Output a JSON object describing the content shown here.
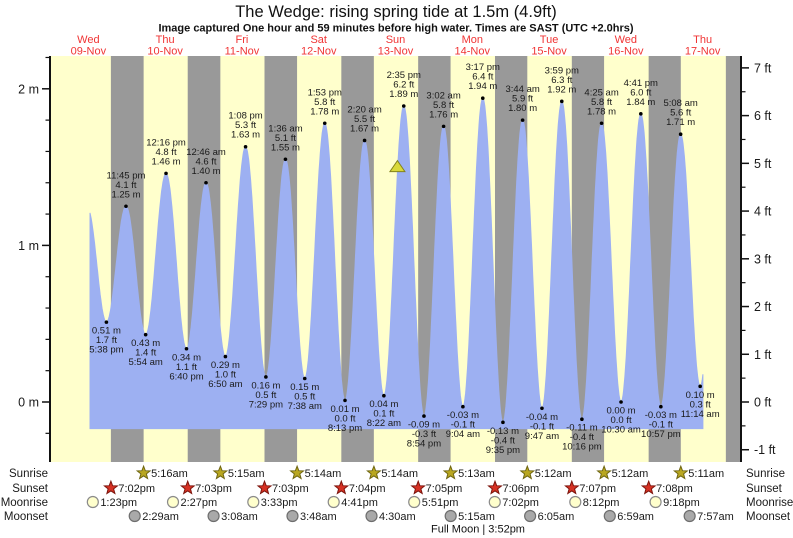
{
  "title": "The Wedge: rising  spring tide at 1.5m (4.9ft)",
  "subtitle": "Image captured One hour and 59 minutes before high water. Times are SAST (UTC +2.0hrs)",
  "colors": {
    "background": "#ffffff",
    "day_band": "#ffffcc",
    "night_band": "#999999",
    "tide_fill": "#9db0f2",
    "axis": "#111111",
    "day_label_red": "#f03434",
    "label_text": "#1a1a1a",
    "dot": "#000000",
    "sunrise_star": "#b9a720",
    "sunrise_star_border": "#6f6612",
    "sunset_star": "#d63123",
    "sunset_star_border": "#7c150d",
    "moonrise_fill": "#ffffcc",
    "moonrise_border": "#8a8a8a",
    "moonset_fill": "#a9a9a9",
    "moonset_border": "#6e6e6e",
    "capture_marker_fill": "#d9d93a",
    "capture_marker_border": "#82821e"
  },
  "chart_data": {
    "type": "area",
    "title": "The Wedge: rising  spring tide at 1.5m (4.9ft)",
    "x_days": [
      {
        "dow": "Wed",
        "date": "09-Nov"
      },
      {
        "dow": "Thu",
        "date": "10-Nov"
      },
      {
        "dow": "Fri",
        "date": "11-Nov"
      },
      {
        "dow": "Sat",
        "date": "12-Nov"
      },
      {
        "dow": "Sun",
        "date": "13-Nov"
      },
      {
        "dow": "Mon",
        "date": "14-Nov"
      },
      {
        "dow": "Tue",
        "date": "15-Nov"
      },
      {
        "dow": "Wed",
        "date": "16-Nov"
      },
      {
        "dow": "Thu",
        "date": "17-Nov"
      }
    ],
    "xlim_hours": [
      0,
      216
    ],
    "y_axis_left": {
      "unit": "m",
      "values": [
        0,
        1,
        2
      ],
      "labels": [
        "0 m",
        "1 m",
        "2 m"
      ],
      "minor_step_m": 0.2
    },
    "y_axis_right": {
      "unit": "ft",
      "values": [
        -1,
        0,
        1,
        2,
        3,
        4,
        5,
        6,
        7
      ],
      "labels": [
        "-1 ft",
        "0 ft",
        "1 ft",
        "2 ft",
        "3 ft",
        "4 ft",
        "5 ft",
        "6 ft",
        "7 ft"
      ],
      "minor_step_ft": 0.5
    },
    "ylim_m": [
      -0.38,
      2.21
    ],
    "baseline_m": -0.17,
    "fill_t_range": [
      12.5,
      204.1
    ],
    "grid": false,
    "extremes": [
      {
        "kind": "high",
        "t": 11.7,
        "height_m": 1.24,
        "edge": true
      },
      {
        "kind": "low",
        "t": 17.633,
        "height_m": 0.51,
        "labels": [
          "0.51 m",
          "1.7 ft",
          "5:38 pm"
        ]
      },
      {
        "kind": "high",
        "t": 23.75,
        "height_m": 1.25,
        "labels": [
          "11:45 pm",
          "4.1 ft",
          "1.25 m"
        ]
      },
      {
        "kind": "low",
        "t": 29.9,
        "height_m": 0.43,
        "labels": [
          "0.43 m",
          "1.4 ft",
          "5:54 am"
        ]
      },
      {
        "kind": "high",
        "t": 36.267,
        "height_m": 1.46,
        "labels": [
          "12:16 pm",
          "4.8 ft",
          "1.46 m"
        ]
      },
      {
        "kind": "low",
        "t": 42.667,
        "height_m": 0.34,
        "labels": [
          "0.34 m",
          "1.1 ft",
          "6:40 pm"
        ]
      },
      {
        "kind": "high",
        "t": 48.767,
        "height_m": 1.4,
        "labels": [
          "12:46 am",
          "4.6 ft",
          "1.40 m"
        ]
      },
      {
        "kind": "low",
        "t": 54.833,
        "height_m": 0.29,
        "labels": [
          "0.29 m",
          "1.0 ft",
          "6:50 am"
        ]
      },
      {
        "kind": "high",
        "t": 61.133,
        "height_m": 1.63,
        "labels": [
          "1:08 pm",
          "5.3 ft",
          "1.63 m"
        ]
      },
      {
        "kind": "low",
        "t": 67.483,
        "height_m": 0.16,
        "labels": [
          "0.16 m",
          "0.5 ft",
          "7:29 pm"
        ]
      },
      {
        "kind": "high",
        "t": 73.6,
        "height_m": 1.55,
        "labels": [
          "1:36 am",
          "5.1 ft",
          "1.55 m"
        ]
      },
      {
        "kind": "low",
        "t": 79.633,
        "height_m": 0.15,
        "labels": [
          "0.15 m",
          "0.5 ft",
          "7:38 am"
        ]
      },
      {
        "kind": "high",
        "t": 85.883,
        "height_m": 1.78,
        "labels": [
          "1:53 pm",
          "5.8 ft",
          "1.78 m"
        ]
      },
      {
        "kind": "low",
        "t": 92.217,
        "height_m": 0.01,
        "labels": [
          "0.01 m",
          "0.0 ft",
          "8:13 pm"
        ]
      },
      {
        "kind": "high",
        "t": 98.333,
        "height_m": 1.67,
        "labels": [
          "2:20 am",
          "5.5 ft",
          "1.67 m"
        ]
      },
      {
        "kind": "low",
        "t": 104.367,
        "height_m": 0.04,
        "labels": [
          "0.04 m",
          "0.1 ft",
          "8:22 am"
        ]
      },
      {
        "kind": "high",
        "t": 110.583,
        "height_m": 1.89,
        "labels": [
          "2:35 pm",
          "6.2 ft",
          "1.89 m"
        ]
      },
      {
        "kind": "low",
        "t": 116.9,
        "height_m": -0.09,
        "labels": [
          "-0.09 m",
          "-0.3 ft",
          "8:54 pm"
        ]
      },
      {
        "kind": "high",
        "t": 123.033,
        "height_m": 1.76,
        "labels": [
          "3:02 am",
          "5.8 ft",
          "1.76 m"
        ]
      },
      {
        "kind": "low",
        "t": 129.067,
        "height_m": -0.03,
        "labels": [
          "-0.03 m",
          "-0.1 ft",
          "9:04 am"
        ]
      },
      {
        "kind": "high",
        "t": 135.283,
        "height_m": 1.94,
        "labels": [
          "3:17 pm",
          "6.4 ft",
          "1.94 m"
        ]
      },
      {
        "kind": "low",
        "t": 141.583,
        "height_m": -0.13,
        "labels": [
          "-0.13 m",
          "-0.4 ft",
          "9:35 pm"
        ]
      },
      {
        "kind": "high",
        "t": 147.733,
        "height_m": 1.8,
        "labels": [
          "3:44 am",
          "5.9 ft",
          "1.80 m"
        ]
      },
      {
        "kind": "low",
        "t": 153.783,
        "height_m": -0.04,
        "labels": [
          "-0.04 m",
          "-0.1 ft",
          "9:47 am"
        ]
      },
      {
        "kind": "high",
        "t": 159.983,
        "height_m": 1.92,
        "labels": [
          "3:59 pm",
          "6.3 ft",
          "1.92 m"
        ]
      },
      {
        "kind": "low",
        "t": 166.267,
        "height_m": -0.11,
        "labels": [
          "-0.11 m",
          "-0.4 ft",
          "10:16 pm"
        ]
      },
      {
        "kind": "high",
        "t": 172.417,
        "height_m": 1.78,
        "labels": [
          "4:25 am",
          "5.8 ft",
          "1.78 m"
        ]
      },
      {
        "kind": "low",
        "t": 178.5,
        "height_m": 0.0,
        "labels": [
          "0.00 m",
          "0.0 ft",
          "10:30 am"
        ]
      },
      {
        "kind": "high",
        "t": 184.683,
        "height_m": 1.84,
        "labels": [
          "4:41 pm",
          "6.0 ft",
          "1.84 m"
        ]
      },
      {
        "kind": "low",
        "t": 190.95,
        "height_m": -0.03,
        "labels": [
          "-0.03 m",
          "-0.1 ft",
          "10:57 pm"
        ]
      },
      {
        "kind": "high",
        "t": 197.133,
        "height_m": 1.71,
        "labels": [
          "5:08 am",
          "5.6 ft",
          "1.71 m"
        ]
      },
      {
        "kind": "low",
        "t": 203.233,
        "height_m": 0.1,
        "labels": [
          "0.10 m",
          "0.3 ft",
          "11:14 am"
        ]
      },
      {
        "kind": "high",
        "t": 209.4,
        "height_m": 1.7,
        "edge": true
      }
    ],
    "nights_t": [
      [
        19.033,
        29.267
      ],
      [
        43.05,
        53.25
      ],
      [
        67.05,
        77.233
      ],
      [
        91.067,
        101.233
      ],
      [
        115.083,
        125.217
      ],
      [
        139.1,
        149.2
      ],
      [
        163.117,
        173.2
      ],
      [
        187.133,
        197.183
      ],
      [
        211.267,
        216
      ]
    ],
    "capture_marker": {
      "t": 108.6,
      "height_m": 1.5
    }
  },
  "astro": {
    "rows": [
      {
        "label": "Sunrise",
        "icon": "sunrise-star",
        "entries": [
          {
            "time": "5:16am",
            "t": 29.267
          },
          {
            "time": "5:15am",
            "t": 53.25
          },
          {
            "time": "5:14am",
            "t": 77.233
          },
          {
            "time": "5:14am",
            "t": 101.233
          },
          {
            "time": "5:13am",
            "t": 125.217
          },
          {
            "time": "5:12am",
            "t": 149.2
          },
          {
            "time": "5:12am",
            "t": 173.2
          },
          {
            "time": "5:11am",
            "t": 197.183
          }
        ]
      },
      {
        "label": "Sunset",
        "icon": "sunset-star",
        "entries": [
          {
            "time": "7:02pm",
            "t": 19.033
          },
          {
            "time": "7:03pm",
            "t": 43.05
          },
          {
            "time": "7:03pm",
            "t": 67.05
          },
          {
            "time": "7:04pm",
            "t": 91.067
          },
          {
            "time": "7:05pm",
            "t": 115.083
          },
          {
            "time": "7:06pm",
            "t": 139.1
          },
          {
            "time": "7:07pm",
            "t": 163.117
          },
          {
            "time": "7:08pm",
            "t": 187.133
          }
        ]
      },
      {
        "label": "Moonrise",
        "icon": "moonrise-circle",
        "entries": [
          {
            "time": "1:23pm",
            "t": 13.383
          },
          {
            "time": "2:27pm",
            "t": 38.45
          },
          {
            "time": "3:33pm",
            "t": 63.55
          },
          {
            "time": "4:41pm",
            "t": 88.683
          },
          {
            "time": "5:51pm",
            "t": 113.85
          },
          {
            "time": "7:02pm",
            "t": 139.033
          },
          {
            "time": "8:12pm",
            "t": 164.2
          },
          {
            "time": "9:18pm",
            "t": 189.3
          }
        ]
      },
      {
        "label": "Moonset",
        "icon": "moonset-circle",
        "entries": [
          {
            "time": "2:29am",
            "t": 26.483
          },
          {
            "time": "3:08am",
            "t": 51.133
          },
          {
            "time": "3:48am",
            "t": 75.8
          },
          {
            "time": "4:30am",
            "t": 100.5
          },
          {
            "time": "5:15am",
            "t": 125.25
          },
          {
            "time": "6:05am",
            "t": 150.083
          },
          {
            "time": "6:59am",
            "t": 174.983
          },
          {
            "time": "7:57am",
            "t": 199.95
          }
        ]
      }
    ],
    "footer": "Full Moon | 3:52pm"
  }
}
